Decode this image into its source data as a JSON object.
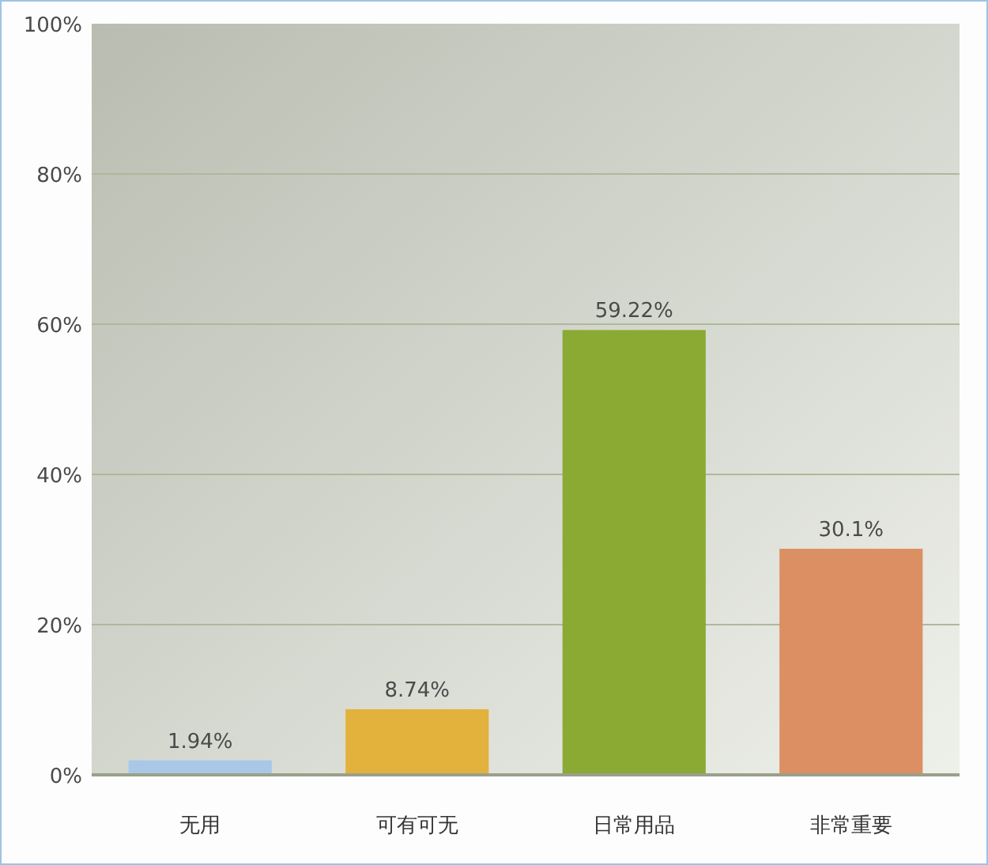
{
  "chart_data": {
    "type": "bar",
    "categories": [
      "无用",
      "可有可无",
      "日常用品",
      "非常重要"
    ],
    "values": [
      1.94,
      8.74,
      59.22,
      30.1
    ],
    "colors": [
      "#a9c8e8",
      "#e3b23c",
      "#8aaa34",
      "#dc8f62"
    ],
    "value_labels": [
      "1.94%",
      "8.74%",
      "59.22%",
      "30.1%"
    ],
    "ylim": [
      0,
      100
    ],
    "yticks": [
      {
        "value": 0,
        "label": "0%"
      },
      {
        "value": 20,
        "label": "20%"
      },
      {
        "value": 40,
        "label": "40%"
      },
      {
        "value": 60,
        "label": "60%"
      },
      {
        "value": 80,
        "label": "80%"
      },
      {
        "value": 100,
        "label": "100%"
      }
    ],
    "grid": "y"
  }
}
